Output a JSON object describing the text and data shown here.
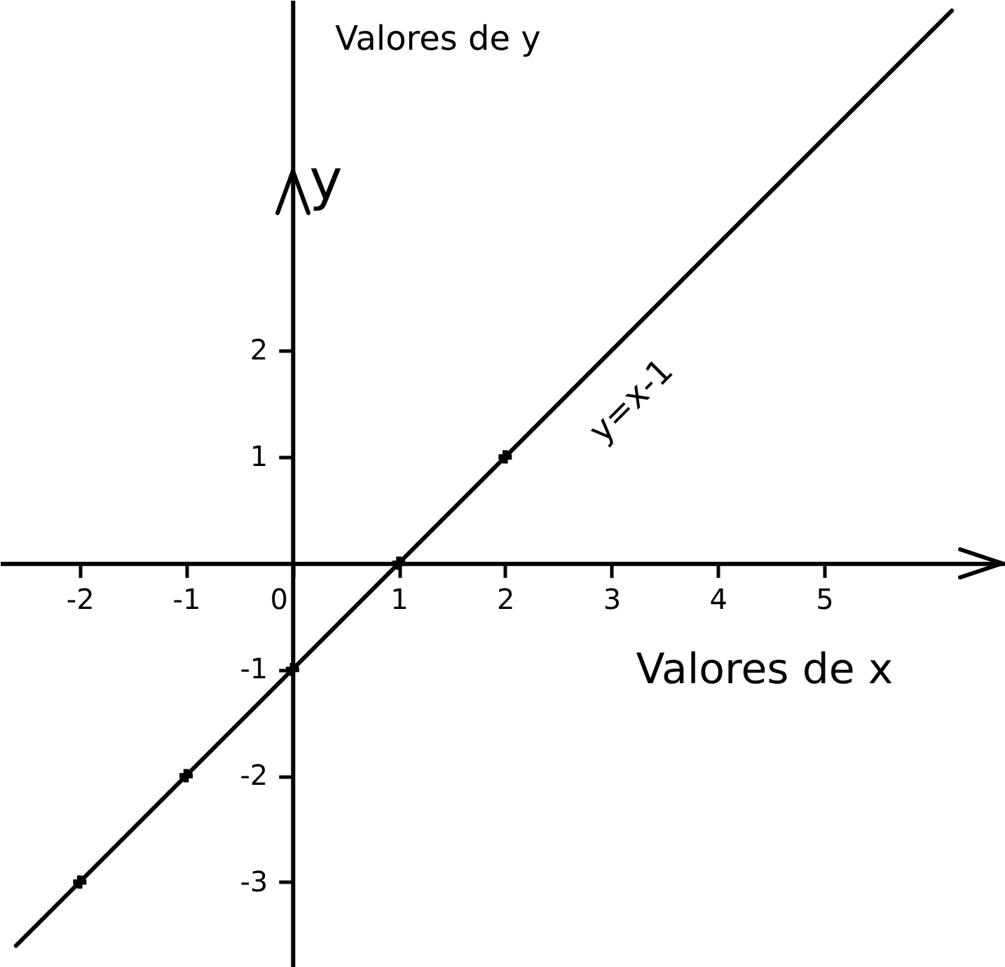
{
  "chart_data": {
    "type": "line",
    "xlabel": "Valores de x",
    "ylabel": "Valores de y",
    "series": [
      {
        "name": "y=x-1",
        "color": "#000000",
        "x": [
          -2.6,
          6.2
        ],
        "values": [
          -3.6,
          5.2
        ]
      },
      {
        "type": "scatter",
        "color": "#000000",
        "marker": "cross",
        "x": [
          -2,
          -1,
          0,
          1,
          2
        ],
        "values": [
          -3,
          -2,
          -1,
          0,
          1
        ]
      }
    ],
    "xlim": [
      -2.75,
      6.7
    ],
    "ylim": [
      -3.8,
      5.3
    ],
    "xticks": [
      -2,
      -1,
      0,
      1,
      2,
      3,
      4,
      5
    ],
    "yticks": [
      -3,
      -2,
      -1,
      1,
      2
    ],
    "annotations": [
      "y"
    ]
  }
}
